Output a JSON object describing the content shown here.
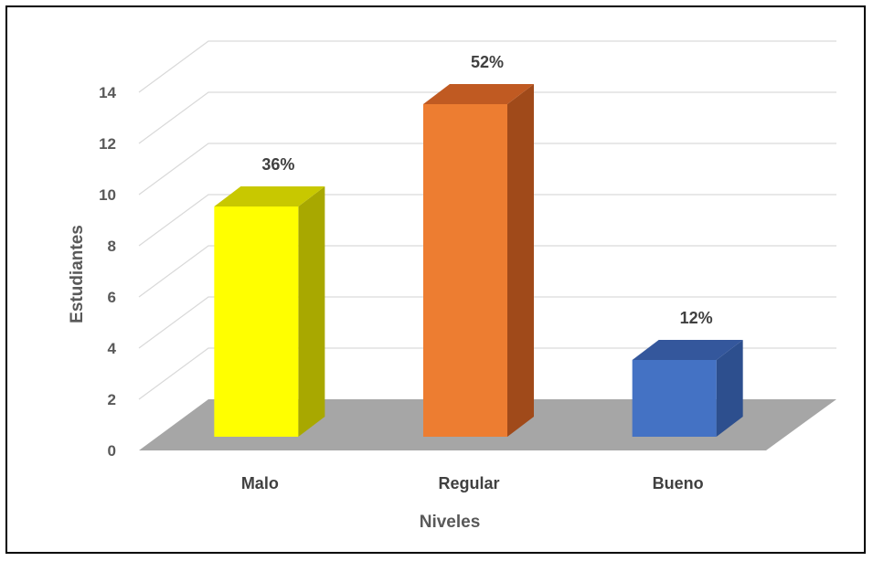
{
  "chart_data": {
    "type": "bar",
    "title": "",
    "xlabel": "Niveles",
    "ylabel": "Estudiantes",
    "categories": [
      "Malo",
      "Regular",
      "Bueno"
    ],
    "values": [
      9,
      13,
      3
    ],
    "data_labels": [
      "36%",
      "52%",
      "12%"
    ],
    "ylim": [
      0,
      14
    ],
    "yticks": [
      0,
      2,
      4,
      6,
      8,
      10,
      12,
      14
    ],
    "grid": true,
    "legend": "none",
    "style": "3d-column",
    "colors": [
      {
        "front": "#FFFF00",
        "side": "#A8A800",
        "top": "#C8C800"
      },
      {
        "front": "#ED7D31",
        "side": "#A04A1A",
        "top": "#C05A22"
      },
      {
        "front": "#4472C4",
        "side": "#2D4F8E",
        "top": "#34579C"
      }
    ],
    "floor_color": "#A6A6A6",
    "gridline_color": "#D9D9D9"
  }
}
